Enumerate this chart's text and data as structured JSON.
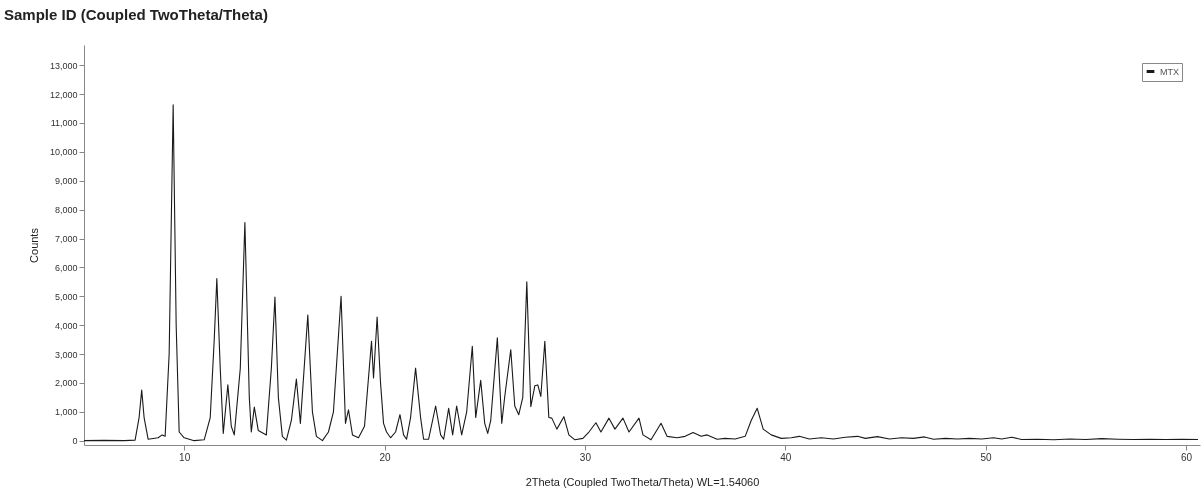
{
  "chart_data": {
    "type": "line",
    "title": "Sample ID (Coupled TwoTheta/Theta)",
    "xlabel": "2Theta (Coupled TwoTheta/Theta) WL=1.54060",
    "ylabel": "Counts",
    "xlim": [
      5,
      60.7
    ],
    "xticks": [
      10,
      20,
      30,
      40,
      50,
      60
    ],
    "ylim": [
      -150,
      13700
    ],
    "yticks": [
      0,
      {
        "value": 1000,
        "label": "1,000"
      },
      {
        "value": 2000,
        "label": "2,000"
      },
      {
        "value": 3000,
        "label": "3,000"
      },
      {
        "value": 4000,
        "label": "4,000"
      },
      {
        "value": 5000,
        "label": "5,000"
      },
      {
        "value": 6000,
        "label": "6,000"
      },
      {
        "value": 7000,
        "label": "7,000"
      },
      {
        "value": 8000,
        "label": "8,000"
      },
      {
        "value": 9000,
        "label": "9,000"
      },
      {
        "value": 10000,
        "label": "10,000"
      },
      {
        "value": 11000,
        "label": "11,000"
      },
      {
        "value": 12000,
        "label": "12,000"
      },
      {
        "value": 13000,
        "label": "13,000"
      }
    ],
    "grid": false,
    "legend": "top right",
    "marker": "none",
    "line_style": "solid",
    "series": [
      {
        "name": "MTX",
        "color": "#1a1a1a",
        "x": [
          5,
          6,
          7,
          7.55,
          7.75,
          7.88,
          8.0,
          8.2,
          8.7,
          8.9,
          9.05,
          9.25,
          9.45,
          9.6,
          9.75,
          10,
          10.5,
          11.0,
          11.3,
          11.5,
          11.63,
          11.8,
          11.95,
          12.18,
          12.35,
          12.5,
          12.8,
          13.03,
          13.25,
          13.35,
          13.5,
          13.7,
          14.1,
          14.35,
          14.53,
          14.7,
          14.9,
          15.1,
          15.35,
          15.6,
          15.8,
          16.17,
          16.4,
          16.6,
          16.9,
          17.2,
          17.45,
          17.83,
          18.05,
          18.2,
          18.4,
          18.7,
          19.0,
          19.35,
          19.45,
          19.63,
          19.8,
          19.95,
          20.1,
          20.3,
          20.55,
          20.77,
          20.95,
          21.1,
          21.3,
          21.55,
          21.8,
          21.95,
          22.2,
          22.55,
          22.8,
          22.95,
          23.2,
          23.4,
          23.6,
          23.85,
          24.1,
          24.38,
          24.55,
          24.8,
          25.0,
          25.15,
          25.3,
          25.63,
          25.85,
          26.0,
          26.3,
          26.5,
          26.7,
          26.9,
          27.1,
          27.3,
          27.5,
          27.65,
          27.8,
          28.0,
          28.2,
          28.35,
          28.6,
          28.95,
          29.2,
          29.5,
          29.9,
          30.2,
          30.55,
          30.8,
          31.2,
          31.5,
          31.9,
          32.2,
          32.7,
          32.9,
          33.3,
          33.8,
          34.1,
          34.6,
          35.0,
          35.4,
          35.8,
          36.1,
          36.6,
          37.0,
          37.5,
          38.0,
          38.3,
          38.6,
          38.9,
          39.3,
          39.8,
          40.3,
          40.7,
          41.2,
          41.8,
          42.4,
          43.0,
          43.6,
          44.0,
          44.6,
          45.2,
          45.8,
          46.4,
          46.95,
          47.4,
          48.0,
          48.6,
          49.2,
          49.8,
          50.4,
          50.8,
          51.3,
          51.8,
          52.6,
          53.4,
          54.2,
          55.0,
          55.8,
          56.6,
          57.4,
          58.2,
          59.0,
          59.8,
          60.6
        ],
        "values": [
          0,
          10,
          0,
          20,
          800,
          1750,
          800,
          50,
          100,
          200,
          150,
          3000,
          11630,
          4000,
          300,
          100,
          0,
          30,
          800,
          3500,
          5610,
          2500,
          250,
          1935,
          500,
          200,
          2500,
          7550,
          1500,
          300,
          1160,
          350,
          200,
          2500,
          4970,
          1500,
          150,
          20,
          700,
          2130,
          600,
          4350,
          1000,
          150,
          0,
          300,
          1000,
          5000,
          600,
          1070,
          200,
          100,
          500,
          3440,
          2170,
          4280,
          2000,
          600,
          300,
          100,
          300,
          900,
          200,
          50,
          800,
          2510,
          800,
          50,
          50,
          1200,
          200,
          50,
          1120,
          200,
          1200,
          200,
          1000,
          3270,
          800,
          2090,
          600,
          250,
          700,
          3560,
          600,
          1530,
          3150,
          1200,
          900,
          1500,
          5500,
          1180,
          1900,
          1930,
          1530,
          3440,
          800,
          780,
          400,
          830,
          200,
          30,
          80,
          300,
          620,
          300,
          780,
          400,
          780,
          300,
          780,
          200,
          30,
          600,
          150,
          100,
          150,
          280,
          150,
          200,
          50,
          80,
          60,
          150,
          700,
          1120,
          400,
          200,
          80,
          100,
          150,
          60,
          100,
          60,
          120,
          150,
          80,
          140,
          60,
          100,
          80,
          130,
          50,
          80,
          60,
          80,
          60,
          100,
          60,
          120,
          40,
          50,
          30,
          60,
          40,
          70,
          50,
          40,
          50,
          40,
          50,
          40
        ]
      }
    ]
  }
}
